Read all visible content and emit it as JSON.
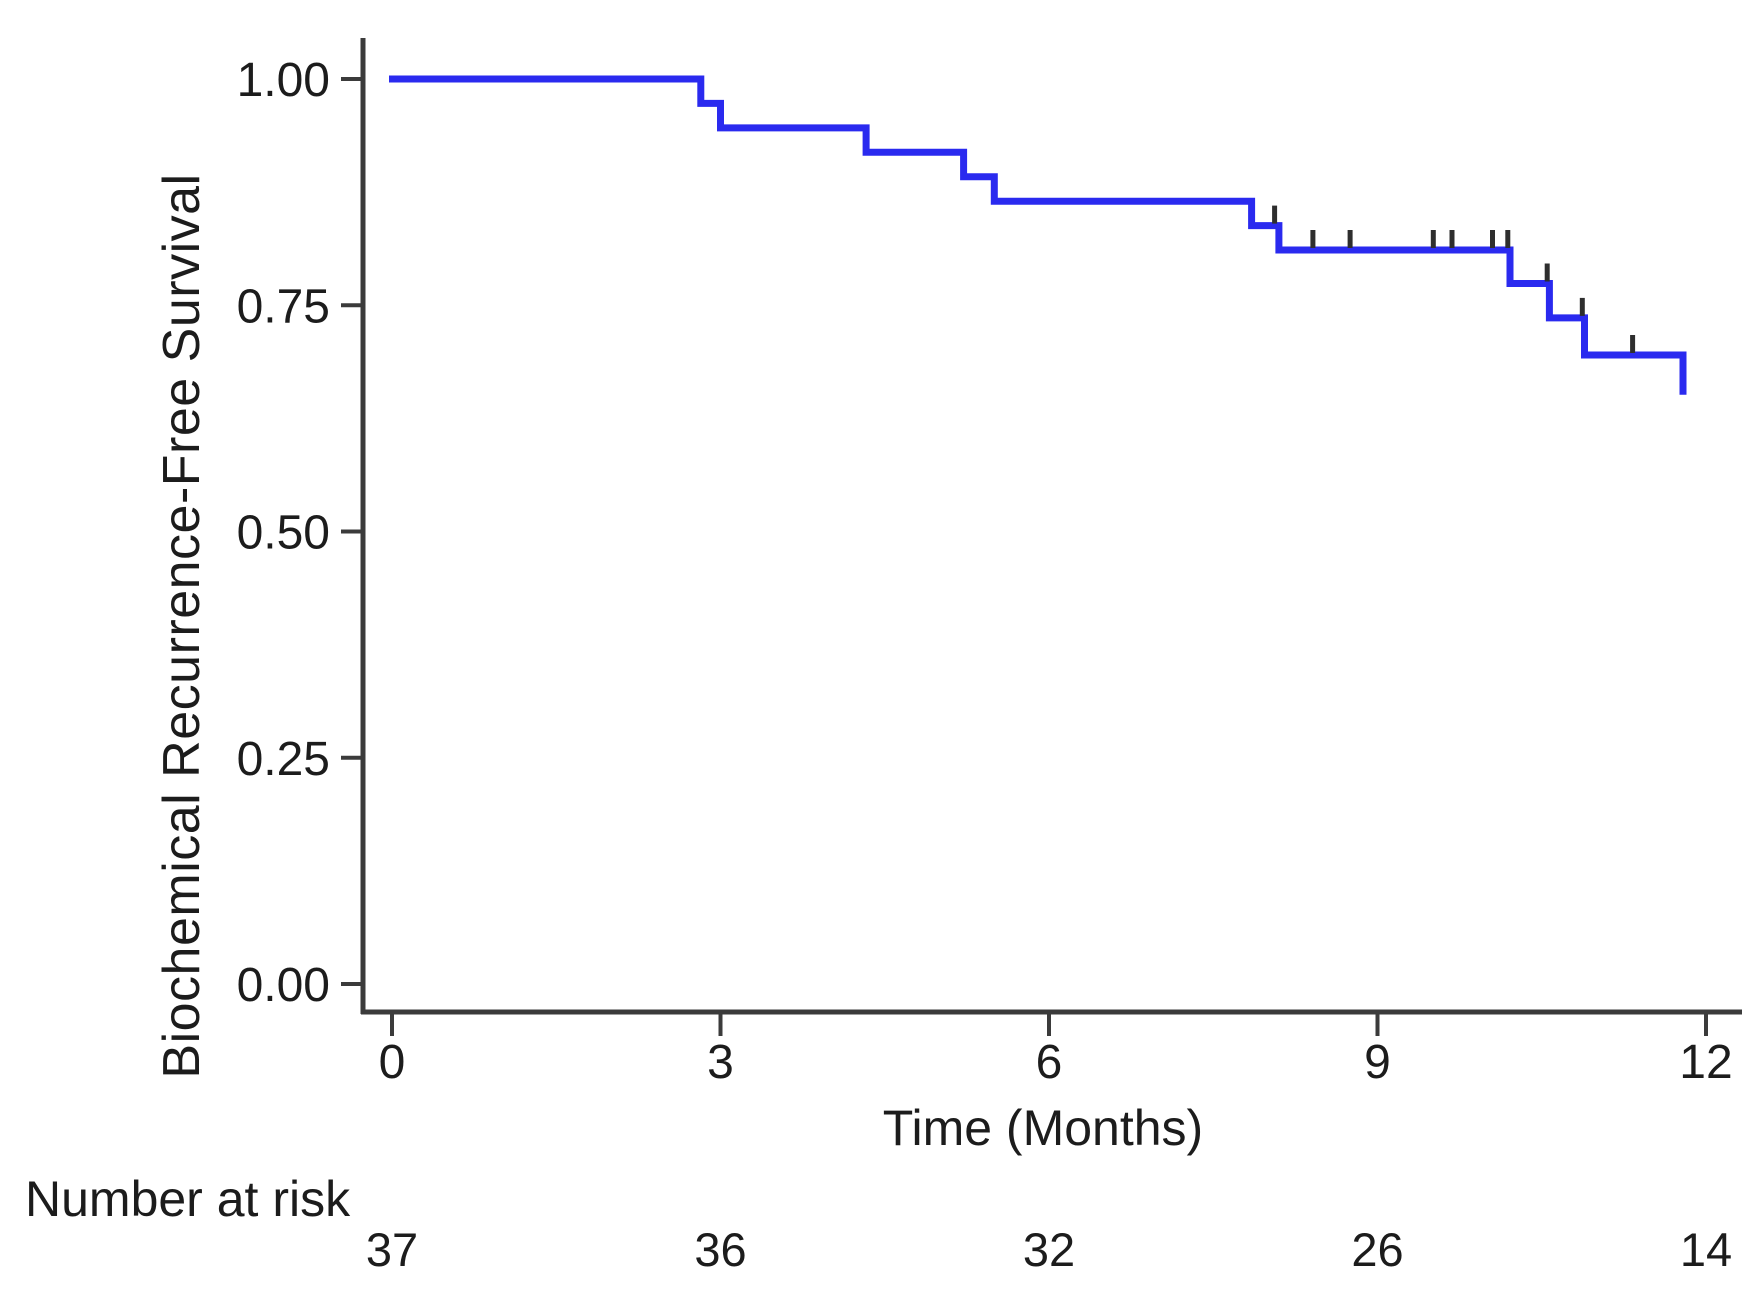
{
  "chart_data": {
    "type": "line",
    "chart_kind": "kaplan-meier-step",
    "title": "",
    "xlabel": "Time (Months)",
    "ylabel": "Biochemical Recurrence-Free Survival",
    "xlim": [
      0,
      12
    ],
    "ylim": [
      0,
      1
    ],
    "grid": false,
    "legend_position": "none",
    "x_ticks": [
      {
        "value": 0,
        "label": "0"
      },
      {
        "value": 3,
        "label": "3"
      },
      {
        "value": 6,
        "label": "6"
      },
      {
        "value": 9,
        "label": "9"
      },
      {
        "value": 12,
        "label": "12"
      }
    ],
    "y_ticks": [
      {
        "value": 1.0,
        "label": "1.00"
      },
      {
        "value": 0.75,
        "label": "0.75"
      },
      {
        "value": 0.5,
        "label": "0.50"
      },
      {
        "value": 0.25,
        "label": "0.25"
      },
      {
        "value": 0.0,
        "label": "0.00"
      }
    ],
    "colors": {
      "curve": "#2a2aef",
      "axis": "#3b3b3b",
      "text": "#1c1c1c",
      "censor": "#2e2e2e",
      "background": "#ffffff"
    },
    "series": [
      {
        "step_points": [
          [
            0.0,
            1.0
          ],
          [
            2.82,
            0.973
          ],
          [
            3.0,
            0.946
          ],
          [
            4.33,
            0.919
          ],
          [
            5.22,
            0.892
          ],
          [
            5.5,
            0.865
          ],
          [
            7.85,
            0.838
          ],
          [
            8.1,
            0.811
          ],
          [
            10.21,
            0.774
          ],
          [
            10.57,
            0.736
          ],
          [
            10.89,
            0.695
          ],
          [
            11.79,
            0.651
          ]
        ],
        "censor_marks": [
          [
            8.06,
            0.838
          ],
          [
            8.41,
            0.811
          ],
          [
            8.75,
            0.811
          ],
          [
            9.51,
            0.811
          ],
          [
            9.68,
            0.811
          ],
          [
            10.05,
            0.811
          ],
          [
            10.19,
            0.811
          ],
          [
            10.55,
            0.774
          ],
          [
            10.87,
            0.736
          ],
          [
            11.33,
            0.695
          ]
        ]
      }
    ],
    "risk_table": {
      "label": "Number at risk",
      "times": [
        0,
        3,
        6,
        9,
        12
      ],
      "counts": [
        "37",
        "36",
        "32",
        "26",
        "14"
      ]
    }
  }
}
